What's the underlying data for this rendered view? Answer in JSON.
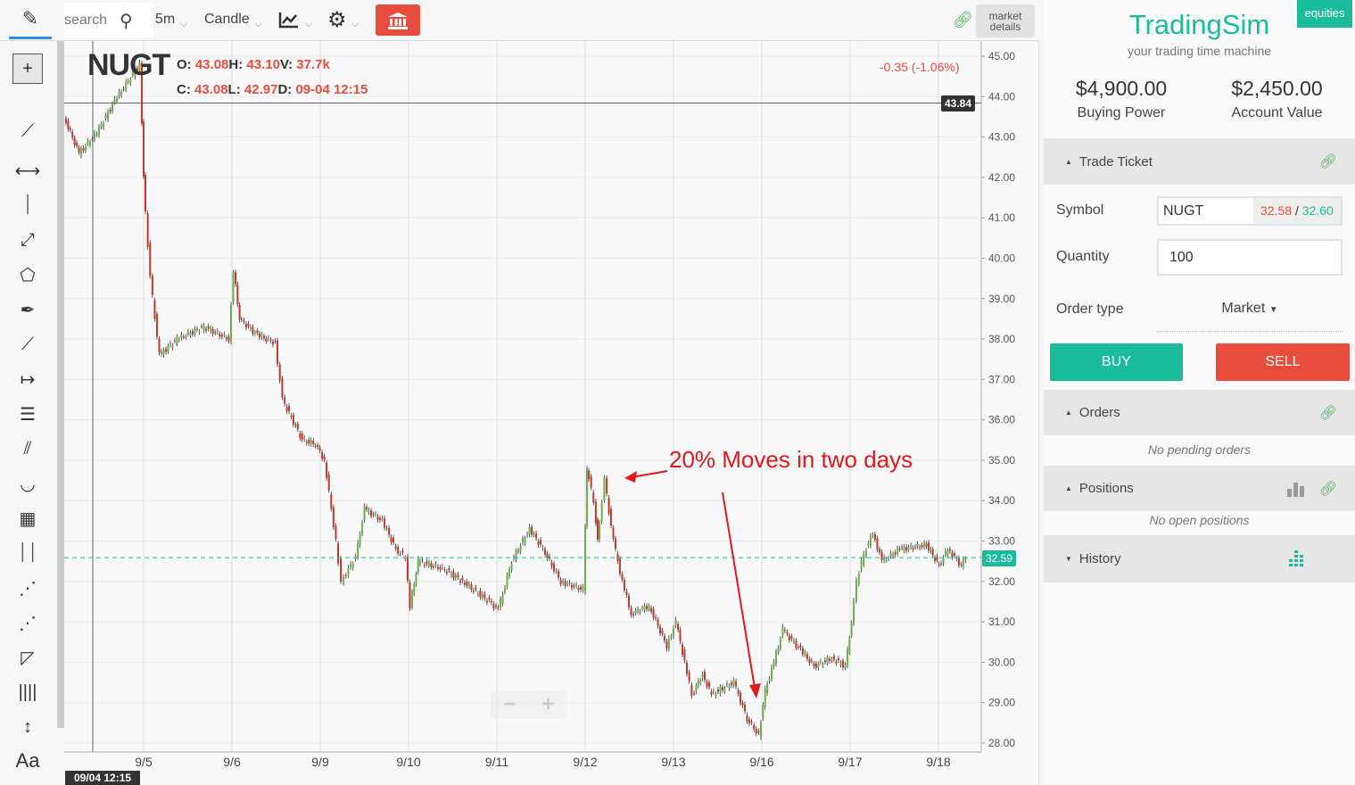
{
  "toolbar": {
    "search_placeholder": "search",
    "interval": "5m",
    "chart_type": "Candle",
    "market_details": "market details"
  },
  "header": {
    "symbol": "NUGT",
    "o_label": "O:",
    "o": "43.08",
    "h_label": "H:",
    "h": "43.10",
    "v_label": "V:",
    "v": "37.7k",
    "c_label": "C:",
    "c": "43.08",
    "l_label": "L:",
    "l": "42.97",
    "d_label": "D:",
    "d": "09-04 12:15",
    "change": "-0.35 (-1.06%)"
  },
  "crosshair": {
    "price": "43.84",
    "time": "09/04 12:15"
  },
  "last_price": "32.59",
  "annotation": "20% Moves in two days",
  "zoom": {
    "minus": "−",
    "plus": "+"
  },
  "colors": {
    "up": "#6ab04c",
    "down": "#c0392b",
    "accent": "#1abc9c",
    "sell": "#e74c3c"
  },
  "chart_data": {
    "type": "candlestick",
    "interval": "5m",
    "y_ticks": [
      "45.00",
      "44.00",
      "43.00",
      "42.00",
      "41.00",
      "40.00",
      "39.00",
      "38.00",
      "37.00",
      "36.00",
      "35.00",
      "34.00",
      "33.00",
      "32.00",
      "31.00",
      "30.00",
      "29.00",
      "28.00"
    ],
    "ylim": [
      28,
      45
    ],
    "x_ticks": [
      "9/5",
      "9/6",
      "9/9",
      "9/10",
      "9/11",
      "9/12",
      "9/13",
      "9/16",
      "9/17",
      "9/18"
    ],
    "sessions": [
      "09-04",
      "09-05",
      "09-06",
      "09-09",
      "09-10",
      "09-11",
      "09-12",
      "09-13",
      "09-16",
      "09-17",
      "09-18"
    ],
    "points": [
      [
        "09-04",
        "10:13",
        43.5
      ],
      [
        "09-04",
        "11:20",
        42.6
      ],
      [
        "09-04",
        "12:39",
        43.1
      ],
      [
        "09-04",
        "13:58",
        43.9
      ],
      [
        "09-04",
        "15:48",
        44.8
      ],
      [
        "09-05",
        "09:34",
        42.0
      ],
      [
        "09-05",
        "10:05",
        39.5
      ],
      [
        "09-05",
        "10:45",
        37.6
      ],
      [
        "09-05",
        "12:03",
        38.0
      ],
      [
        "09-05",
        "14:02",
        38.3
      ],
      [
        "09-05",
        "15:52",
        38.0
      ],
      [
        "09-06",
        "09:42",
        39.7
      ],
      [
        "09-06",
        "10:09",
        38.5
      ],
      [
        "09-06",
        "11:28",
        38.1
      ],
      [
        "09-06",
        "12:47",
        37.9
      ],
      [
        "09-06",
        "13:19",
        36.5
      ],
      [
        "09-06",
        "14:46",
        35.5
      ],
      [
        "09-06",
        "15:45",
        35.4
      ],
      [
        "09-09",
        "09:54",
        35.0
      ],
      [
        "09-09",
        "10:45",
        33.0
      ],
      [
        "09-09",
        "11:09",
        32.0
      ],
      [
        "09-09",
        "12:12",
        32.6
      ],
      [
        "09-09",
        "12:51",
        33.8
      ],
      [
        "09-09",
        "14:10",
        33.5
      ],
      [
        "09-09",
        "15:09",
        32.8
      ],
      [
        "09-09",
        "15:52",
        32.6
      ],
      [
        "09-10",
        "09:42",
        31.4
      ],
      [
        "09-10",
        "10:17",
        32.5
      ],
      [
        "09-10",
        "12:15",
        32.3
      ],
      [
        "09-10",
        "13:34",
        32.0
      ],
      [
        "09-10",
        "15:32",
        31.5
      ],
      [
        "09-11",
        "09:42",
        31.3
      ],
      [
        "09-11",
        "10:41",
        32.5
      ],
      [
        "09-11",
        "12:00",
        33.3
      ],
      [
        "09-11",
        "12:59",
        32.8
      ],
      [
        "09-11",
        "14:18",
        32.0
      ],
      [
        "09-11",
        "15:56",
        31.8
      ],
      [
        "09-12",
        "09:42",
        34.8
      ],
      [
        "09-12",
        "10:13",
        34.0
      ],
      [
        "09-12",
        "10:29",
        33.0
      ],
      [
        "09-12",
        "11:01",
        34.5
      ],
      [
        "09-12",
        "11:40",
        33.0
      ],
      [
        "09-12",
        "12:19",
        32.0
      ],
      [
        "09-12",
        "12:59",
        31.2
      ],
      [
        "09-12",
        "14:18",
        31.4
      ],
      [
        "09-12",
        "15:36",
        30.4
      ],
      [
        "09-13",
        "09:46",
        31.0
      ],
      [
        "09-13",
        "10:25",
        30.0
      ],
      [
        "09-13",
        "10:57",
        29.2
      ],
      [
        "09-13",
        "11:44",
        29.7
      ],
      [
        "09-13",
        "12:23",
        29.2
      ],
      [
        "09-13",
        "14:02",
        29.5
      ],
      [
        "09-13",
        "15:01",
        28.6
      ],
      [
        "09-13",
        "15:52",
        28.2
      ],
      [
        "09-16",
        "09:50",
        29.3
      ],
      [
        "09-16",
        "10:29",
        30.0
      ],
      [
        "09-16",
        "11:08",
        30.8
      ],
      [
        "09-16",
        "12:27",
        30.3
      ],
      [
        "09-16",
        "13:26",
        29.9
      ],
      [
        "09-16",
        "14:45",
        30.1
      ],
      [
        "09-16",
        "15:44",
        29.9
      ],
      [
        "09-17",
        "09:42",
        31.0
      ],
      [
        "09-17",
        "10:05",
        32.0
      ],
      [
        "09-17",
        "10:37",
        32.7
      ],
      [
        "09-17",
        "11:16",
        33.2
      ],
      [
        "09-17",
        "11:56",
        32.5
      ],
      [
        "09-17",
        "13:15",
        32.8
      ],
      [
        "09-17",
        "15:13",
        32.9
      ],
      [
        "09-18",
        "09:38",
        32.4
      ],
      [
        "09-18",
        "10:17",
        32.8
      ],
      [
        "09-18",
        "11:16",
        32.4
      ],
      [
        "09-18",
        "11:36",
        32.59
      ]
    ]
  },
  "panel": {
    "badge": "equities",
    "brand": "TradingSim",
    "tagline": "your trading time machine",
    "buying_power": "$4,900.00",
    "buying_power_label": "Buying Power",
    "account_value": "$2,450.00",
    "account_value_label": "Account Value",
    "trade_ticket": "Trade Ticket",
    "symbol_label": "Symbol",
    "symbol": "NUGT",
    "bid": "32.58",
    "sep": "/",
    "ask": "32.60",
    "quantity_label": "Quantity",
    "quantity": "100",
    "order_type_label": "Order type",
    "order_type": "Market",
    "buy": "BUY",
    "sell": "SELL",
    "orders": "Orders",
    "orders_empty": "No pending orders",
    "positions": "Positions",
    "positions_empty": "No open positions",
    "history": "History"
  }
}
